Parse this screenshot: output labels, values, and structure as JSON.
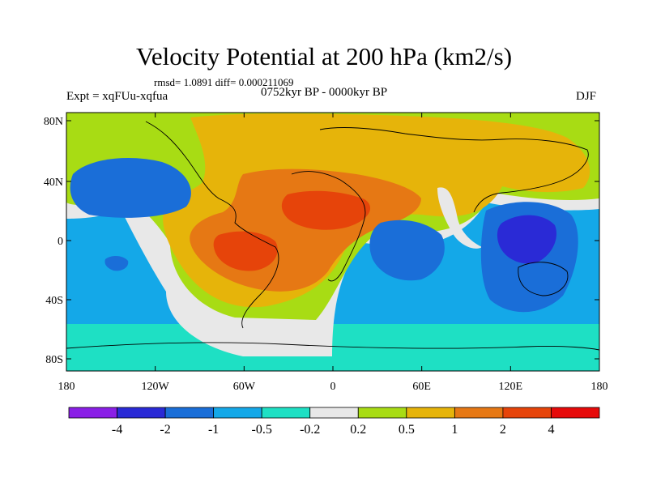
{
  "title": "Velocity Potential at 200 hPa (km2/s)",
  "stats": "rmsd= 1.0891 diff= 0.000211069",
  "experiment": "Expt = xqFUu-xqfua",
  "period": "0752kyr BP - 0000kyr BP",
  "season": "DJF",
  "lat_ticks": [
    "80N",
    "40N",
    "0",
    "40S",
    "80S"
  ],
  "lon_ticks": [
    "180",
    "120W",
    "60W",
    "0",
    "60E",
    "120E",
    "180"
  ],
  "colorbar": {
    "labels": [
      "-4",
      "-2",
      "-1",
      "-0.5",
      "-0.2",
      "0.2",
      "0.5",
      "1",
      "2",
      "4"
    ],
    "colors": [
      "#8a1fe6",
      "#2a2ad6",
      "#1a6ed8",
      "#14a8e8",
      "#1ee0c4",
      "#e8e8e8",
      "#a8dc14",
      "#e6b40a",
      "#e67814",
      "#e6440a",
      "#e60a0a"
    ]
  }
}
